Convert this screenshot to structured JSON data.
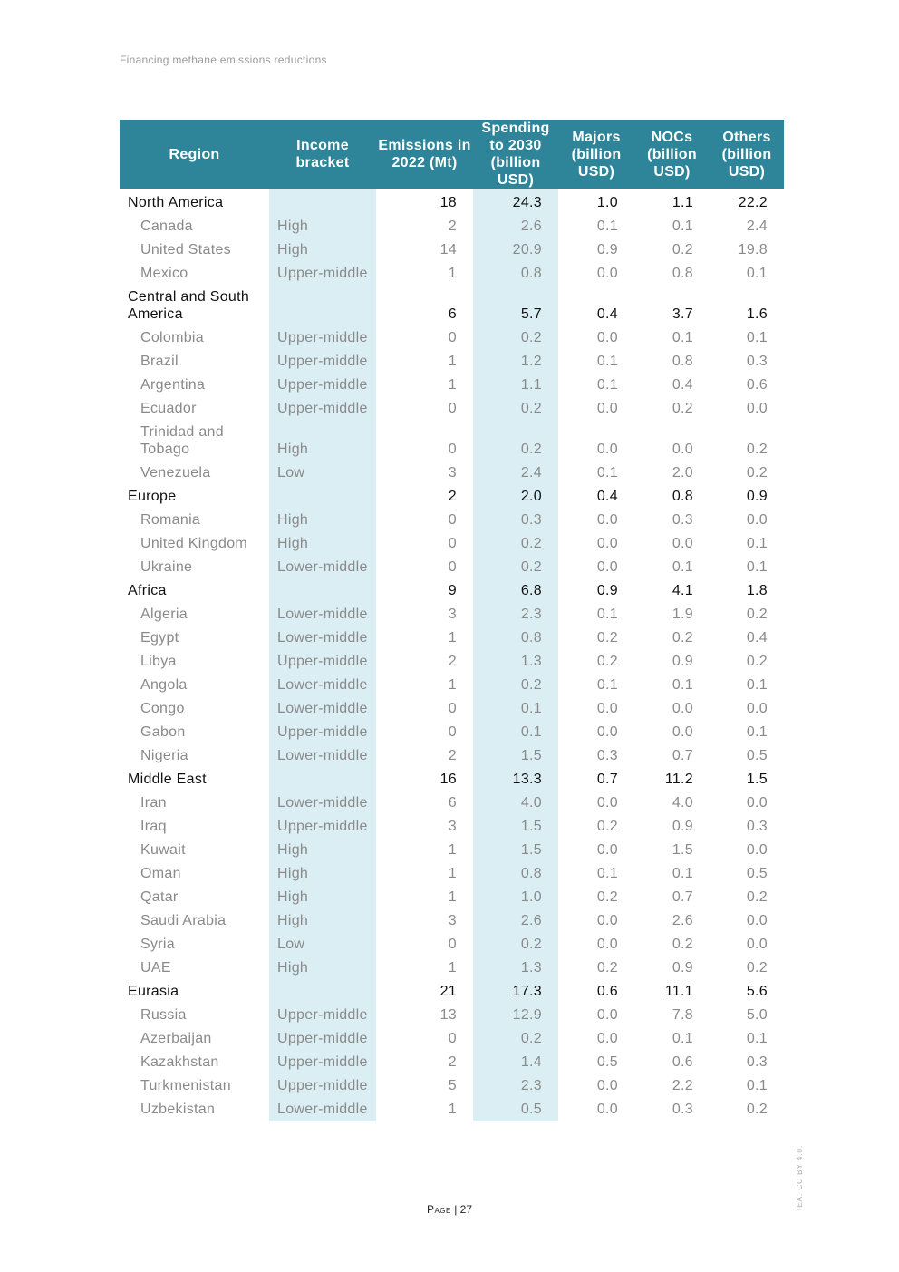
{
  "running_head": "Financing methane emissions reductions",
  "table": {
    "headers": [
      "Region",
      "Income bracket",
      "Emissions in 2022 (Mt)",
      "Spending to 2030 (billion USD)",
      "Majors (billion USD)",
      "NOCs (billion USD)",
      "Others (billion USD)"
    ],
    "rows": [
      {
        "type": "region",
        "name": "North America",
        "income": "",
        "emissions": "18",
        "spending": "24.3",
        "majors": "1.0",
        "nocs": "1.1",
        "others": "22.2"
      },
      {
        "type": "country",
        "name": "Canada",
        "income": "High",
        "emissions": "2",
        "spending": "2.6",
        "majors": "0.1",
        "nocs": "0.1",
        "others": "2.4"
      },
      {
        "type": "country",
        "name": "United States",
        "income": "High",
        "emissions": "14",
        "spending": "20.9",
        "majors": "0.9",
        "nocs": "0.2",
        "others": "19.8"
      },
      {
        "type": "country",
        "name": "Mexico",
        "income": "Upper-middle",
        "emissions": "1",
        "spending": "0.8",
        "majors": "0.0",
        "nocs": "0.8",
        "others": "0.1"
      },
      {
        "type": "region",
        "name": "Central and South America",
        "income": "",
        "emissions": "6",
        "spending": "5.7",
        "majors": "0.4",
        "nocs": "3.7",
        "others": "1.6"
      },
      {
        "type": "country",
        "name": "Colombia",
        "income": "Upper-middle",
        "emissions": "0",
        "spending": "0.2",
        "majors": "0.0",
        "nocs": "0.1",
        "others": "0.1"
      },
      {
        "type": "country",
        "name": "Brazil",
        "income": "Upper-middle",
        "emissions": "1",
        "spending": "1.2",
        "majors": "0.1",
        "nocs": "0.8",
        "others": "0.3"
      },
      {
        "type": "country",
        "name": "Argentina",
        "income": "Upper-middle",
        "emissions": "1",
        "spending": "1.1",
        "majors": "0.1",
        "nocs": "0.4",
        "others": "0.6"
      },
      {
        "type": "country",
        "name": "Ecuador",
        "income": "Upper-middle",
        "emissions": "0",
        "spending": "0.2",
        "majors": "0.0",
        "nocs": "0.2",
        "others": "0.0"
      },
      {
        "type": "country",
        "name": "Trinidad and Tobago",
        "income": "High",
        "emissions": "0",
        "spending": "0.2",
        "majors": "0.0",
        "nocs": "0.0",
        "others": "0.2"
      },
      {
        "type": "country",
        "name": "Venezuela",
        "income": "Low",
        "emissions": "3",
        "spending": "2.4",
        "majors": "0.1",
        "nocs": "2.0",
        "others": "0.2"
      },
      {
        "type": "region",
        "name": "Europe",
        "income": "",
        "emissions": "2",
        "spending": "2.0",
        "majors": "0.4",
        "nocs": "0.8",
        "others": "0.9"
      },
      {
        "type": "country",
        "name": "Romania",
        "income": "High",
        "emissions": "0",
        "spending": "0.3",
        "majors": "0.0",
        "nocs": "0.3",
        "others": "0.0"
      },
      {
        "type": "country",
        "name": "United Kingdom",
        "income": "High",
        "emissions": "0",
        "spending": "0.2",
        "majors": "0.0",
        "nocs": "0.0",
        "others": "0.1"
      },
      {
        "type": "country",
        "name": "Ukraine",
        "income": "Lower-middle",
        "emissions": "0",
        "spending": "0.2",
        "majors": "0.0",
        "nocs": "0.1",
        "others": "0.1"
      },
      {
        "type": "region",
        "name": "Africa",
        "income": "",
        "emissions": "9",
        "spending": "6.8",
        "majors": "0.9",
        "nocs": "4.1",
        "others": "1.8"
      },
      {
        "type": "country",
        "name": "Algeria",
        "income": "Lower-middle",
        "emissions": "3",
        "spending": "2.3",
        "majors": "0.1",
        "nocs": "1.9",
        "others": "0.2"
      },
      {
        "type": "country",
        "name": "Egypt",
        "income": "Lower-middle",
        "emissions": "1",
        "spending": "0.8",
        "majors": "0.2",
        "nocs": "0.2",
        "others": "0.4"
      },
      {
        "type": "country",
        "name": "Libya",
        "income": "Upper-middle",
        "emissions": "2",
        "spending": "1.3",
        "majors": "0.2",
        "nocs": "0.9",
        "others": "0.2"
      },
      {
        "type": "country",
        "name": "Angola",
        "income": "Lower-middle",
        "emissions": "1",
        "spending": "0.2",
        "majors": "0.1",
        "nocs": "0.1",
        "others": "0.1"
      },
      {
        "type": "country",
        "name": "Congo",
        "income": "Lower-middle",
        "emissions": "0",
        "spending": "0.1",
        "majors": "0.0",
        "nocs": "0.0",
        "others": "0.0"
      },
      {
        "type": "country",
        "name": "Gabon",
        "income": "Upper-middle",
        "emissions": "0",
        "spending": "0.1",
        "majors": "0.0",
        "nocs": "0.0",
        "others": "0.1"
      },
      {
        "type": "country",
        "name": "Nigeria",
        "income": "Lower-middle",
        "emissions": "2",
        "spending": "1.5",
        "majors": "0.3",
        "nocs": "0.7",
        "others": "0.5"
      },
      {
        "type": "region",
        "name": "Middle East",
        "income": "",
        "emissions": "16",
        "spending": "13.3",
        "majors": "0.7",
        "nocs": "11.2",
        "others": "1.5"
      },
      {
        "type": "country",
        "name": "Iran",
        "income": "Lower-middle",
        "emissions": "6",
        "spending": "4.0",
        "majors": "0.0",
        "nocs": "4.0",
        "others": "0.0"
      },
      {
        "type": "country",
        "name": "Iraq",
        "income": "Upper-middle",
        "emissions": "3",
        "spending": "1.5",
        "majors": "0.2",
        "nocs": "0.9",
        "others": "0.3"
      },
      {
        "type": "country",
        "name": "Kuwait",
        "income": "High",
        "emissions": "1",
        "spending": "1.5",
        "majors": "0.0",
        "nocs": "1.5",
        "others": "0.0"
      },
      {
        "type": "country",
        "name": "Oman",
        "income": "High",
        "emissions": "1",
        "spending": "0.8",
        "majors": "0.1",
        "nocs": "0.1",
        "others": "0.5"
      },
      {
        "type": "country",
        "name": "Qatar",
        "income": "High",
        "emissions": "1",
        "spending": "1.0",
        "majors": "0.2",
        "nocs": "0.7",
        "others": "0.2"
      },
      {
        "type": "country",
        "name": "Saudi Arabia",
        "income": "High",
        "emissions": "3",
        "spending": "2.6",
        "majors": "0.0",
        "nocs": "2.6",
        "others": "0.0"
      },
      {
        "type": "country",
        "name": "Syria",
        "income": "Low",
        "emissions": "0",
        "spending": "0.2",
        "majors": "0.0",
        "nocs": "0.2",
        "others": "0.0"
      },
      {
        "type": "country",
        "name": "UAE",
        "income": "High",
        "emissions": "1",
        "spending": "1.3",
        "majors": "0.2",
        "nocs": "0.9",
        "others": "0.2"
      },
      {
        "type": "region",
        "name": "Eurasia",
        "income": "",
        "emissions": "21",
        "spending": "17.3",
        "majors": "0.6",
        "nocs": "11.1",
        "others": "5.6"
      },
      {
        "type": "country",
        "name": "Russia",
        "income": "Upper-middle",
        "emissions": "13",
        "spending": "12.9",
        "majors": "0.0",
        "nocs": "7.8",
        "others": "5.0"
      },
      {
        "type": "country",
        "name": "Azerbaijan",
        "income": "Upper-middle",
        "emissions": "0",
        "spending": "0.2",
        "majors": "0.0",
        "nocs": "0.1",
        "others": "0.1"
      },
      {
        "type": "country",
        "name": "Kazakhstan",
        "income": "Upper-middle",
        "emissions": "2",
        "spending": "1.4",
        "majors": "0.5",
        "nocs": "0.6",
        "others": "0.3"
      },
      {
        "type": "country",
        "name": "Turkmenistan",
        "income": "Upper-middle",
        "emissions": "5",
        "spending": "2.3",
        "majors": "0.0",
        "nocs": "2.2",
        "others": "0.1"
      },
      {
        "type": "country",
        "name": "Uzbekistan",
        "income": "Lower-middle",
        "emissions": "1",
        "spending": "0.5",
        "majors": "0.0",
        "nocs": "0.3",
        "others": "0.2"
      }
    ]
  },
  "footer": {
    "page_label": "Page",
    "separator": " | ",
    "page_number": "27",
    "license": "IEA. CC BY 4.0."
  },
  "colors": {
    "header_bg": "#2e8599",
    "shade": "#daeef3"
  }
}
